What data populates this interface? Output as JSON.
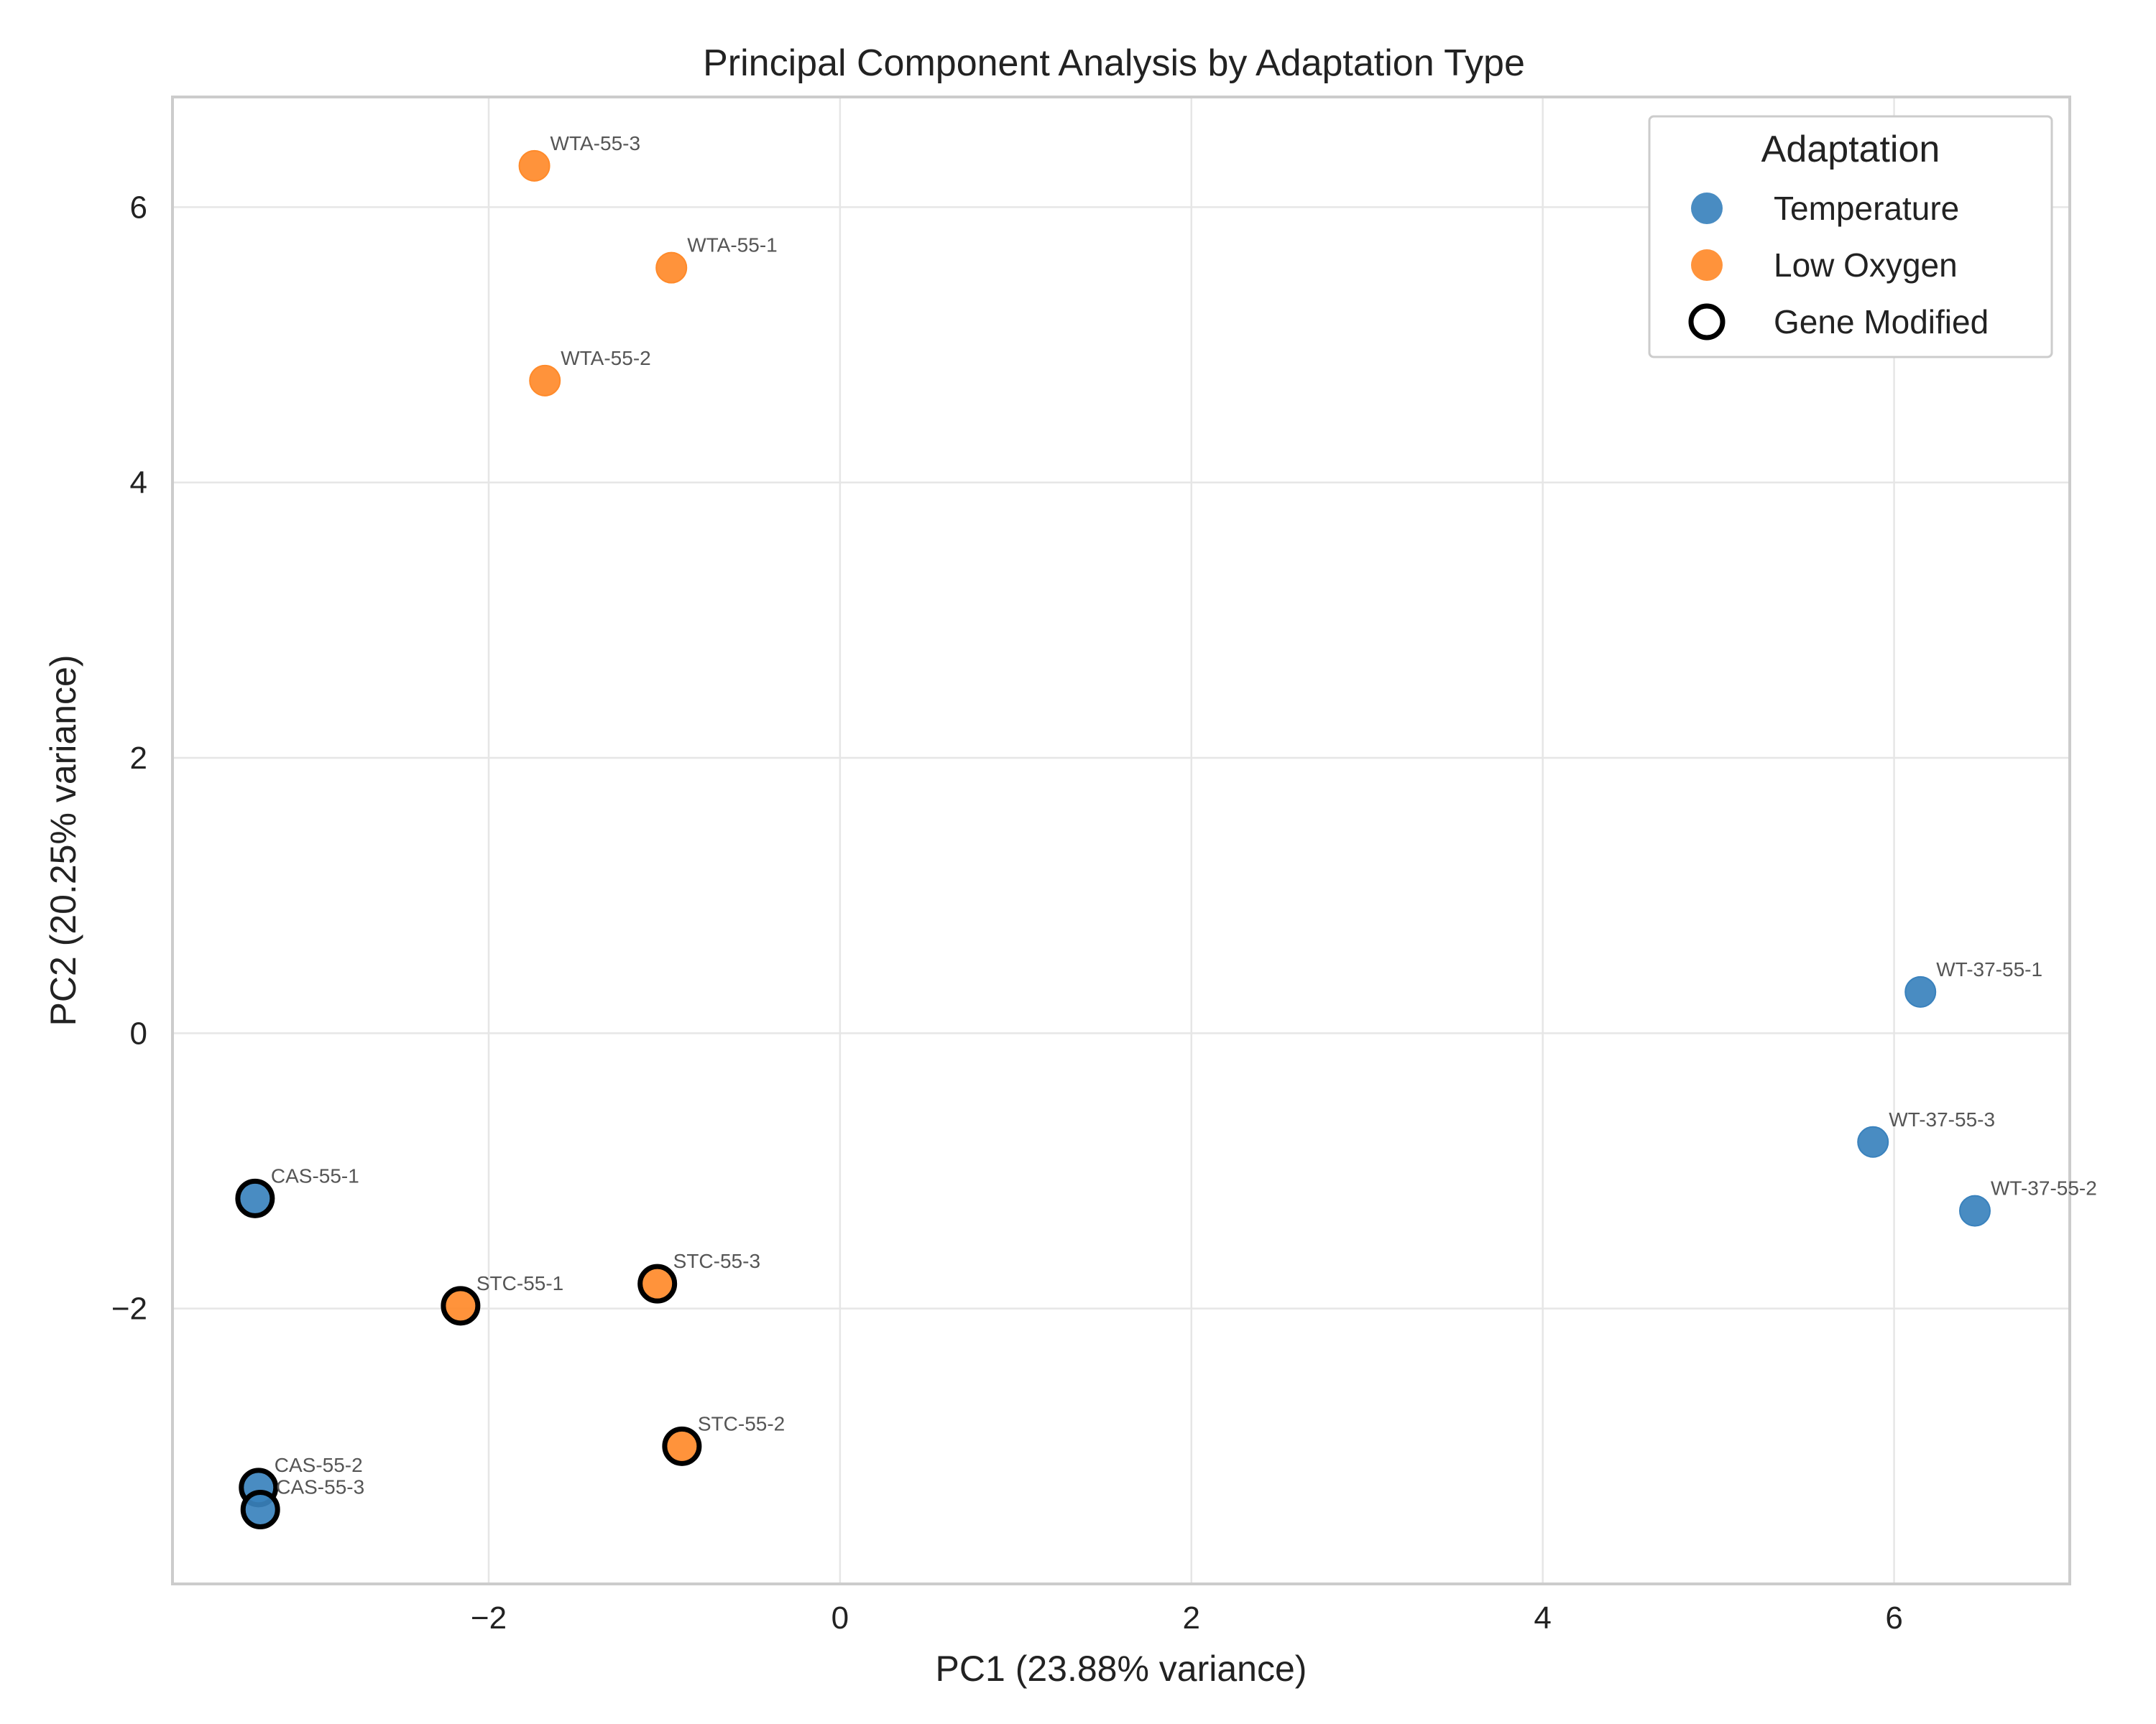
{
  "chart_data": {
    "type": "scatter",
    "title": "Principal Component Analysis by Adaptation Type",
    "xlabel": "PC1 (23.88% variance)",
    "ylabel": "PC2 (20.25% variance)",
    "xlim": [
      -3.8,
      7.0
    ],
    "ylim": [
      -4.0,
      6.8
    ],
    "xticks": [
      -2,
      0,
      2,
      4,
      6
    ],
    "yticks": [
      -2,
      0,
      2,
      4,
      6
    ],
    "xtick_labels": [
      "−2",
      "0",
      "2",
      "4",
      "6"
    ],
    "ytick_labels": [
      "−2",
      "0",
      "2",
      "4",
      "6"
    ],
    "grid": true,
    "legend": {
      "title": "Adaptation",
      "placement": "top-right",
      "entries": [
        {
          "label": "Temperature",
          "marker": "filled",
          "color": "#3a82bd"
        },
        {
          "label": "Low Oxygen",
          "marker": "filled",
          "color": "#ff8a2a"
        },
        {
          "label": "Gene Modified",
          "marker": "ring",
          "color": "#000000"
        }
      ]
    },
    "series": [
      {
        "name": "Temperature",
        "color": "#3a82bd",
        "points": [
          {
            "label": "WT-37-55-1",
            "x": 6.15,
            "y": 0.3,
            "gene_modified": false
          },
          {
            "label": "WT-37-55-3",
            "x": 5.88,
            "y": -0.79,
            "gene_modified": false
          },
          {
            "label": "WT-37-55-2",
            "x": 6.46,
            "y": -1.29,
            "gene_modified": false
          },
          {
            "label": "CAS-55-1",
            "x": -3.33,
            "y": -1.2,
            "gene_modified": true
          },
          {
            "label": "CAS-55-2",
            "x": -3.31,
            "y": -3.3,
            "gene_modified": true
          },
          {
            "label": "CAS-55-3",
            "x": -3.3,
            "y": -3.46,
            "gene_modified": true
          }
        ]
      },
      {
        "name": "Low Oxygen",
        "color": "#ff8a2a",
        "points": [
          {
            "label": "WTA-55-3",
            "x": -1.74,
            "y": 6.3,
            "gene_modified": false
          },
          {
            "label": "WTA-55-1",
            "x": -0.96,
            "y": 5.56,
            "gene_modified": false
          },
          {
            "label": "WTA-55-2",
            "x": -1.68,
            "y": 4.74,
            "gene_modified": false
          },
          {
            "label": "STC-55-1",
            "x": -2.16,
            "y": -1.98,
            "gene_modified": true
          },
          {
            "label": "STC-55-3",
            "x": -1.04,
            "y": -1.82,
            "gene_modified": true
          },
          {
            "label": "STC-55-2",
            "x": -0.9,
            "y": -3.0,
            "gene_modified": true
          }
        ]
      }
    ]
  }
}
